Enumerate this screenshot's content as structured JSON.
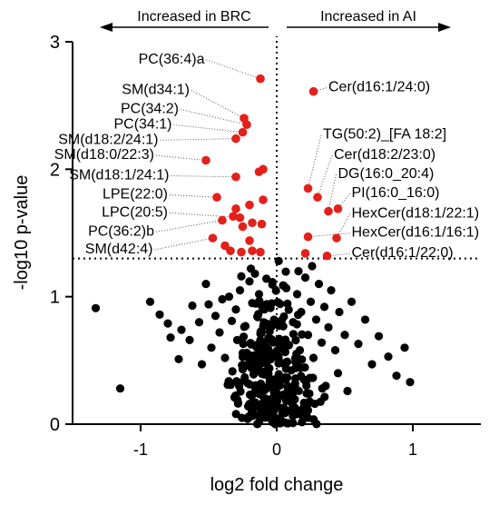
{
  "chart_data": {
    "type": "scatter",
    "title": "",
    "xlabel": "log2 fold change",
    "ylabel": "-log10 p-value",
    "xlim": [
      -1.5,
      1.5
    ],
    "ylim": [
      0,
      3
    ],
    "x_ticks": [
      {
        "v": -1,
        "label": "-1"
      },
      {
        "v": 0,
        "label": "0"
      },
      {
        "v": 1,
        "label": "1"
      }
    ],
    "y_ticks": [
      {
        "v": 0,
        "label": "0"
      },
      {
        "v": 1,
        "label": "1"
      },
      {
        "v": 2,
        "label": "2"
      },
      {
        "v": 3,
        "label": "3"
      }
    ],
    "threshold_y": 1.3,
    "threshold_x": 0,
    "grid": false,
    "header_left": "Increased in BRC",
    "header_right": "Increased in AI",
    "colors": {
      "significant": "#e3201b",
      "nonsignificant": "#000000"
    },
    "significant_points": [
      {
        "x": -0.12,
        "y": 2.71
      },
      {
        "x": -0.24,
        "y": 2.4
      },
      {
        "x": -0.22,
        "y": 2.35
      },
      {
        "x": -0.25,
        "y": 2.29
      },
      {
        "x": -0.3,
        "y": 2.24
      },
      {
        "x": -0.52,
        "y": 2.07
      },
      {
        "x": -0.1,
        "y": 2.0
      },
      {
        "x": -0.13,
        "y": 1.98
      },
      {
        "x": -0.3,
        "y": 1.94
      },
      {
        "x": -0.44,
        "y": 1.78
      },
      {
        "x": -0.1,
        "y": 1.76
      },
      {
        "x": -0.2,
        "y": 1.72
      },
      {
        "x": -0.3,
        "y": 1.69
      },
      {
        "x": -0.32,
        "y": 1.63
      },
      {
        "x": -0.27,
        "y": 1.62
      },
      {
        "x": -0.4,
        "y": 1.6
      },
      {
        "x": -0.18,
        "y": 1.58
      },
      {
        "x": -0.11,
        "y": 1.57
      },
      {
        "x": -0.25,
        "y": 1.55
      },
      {
        "x": -0.47,
        "y": 1.46
      },
      {
        "x": -0.2,
        "y": 1.44
      },
      {
        "x": -0.38,
        "y": 1.4
      },
      {
        "x": -0.34,
        "y": 1.36
      },
      {
        "x": -0.26,
        "y": 1.35
      },
      {
        "x": -0.18,
        "y": 1.36
      },
      {
        "x": -0.12,
        "y": 1.35
      },
      {
        "x": 0.27,
        "y": 2.61
      },
      {
        "x": 0.23,
        "y": 1.85
      },
      {
        "x": 0.3,
        "y": 1.78
      },
      {
        "x": 0.38,
        "y": 1.67
      },
      {
        "x": 0.45,
        "y": 1.69
      },
      {
        "x": 0.44,
        "y": 1.46
      },
      {
        "x": 0.23,
        "y": 1.47
      },
      {
        "x": 0.37,
        "y": 1.32
      },
      {
        "x": 0.21,
        "y": 1.34
      }
    ],
    "labels": [
      {
        "text": "PC(36:4)a",
        "side": "left",
        "x": -0.53,
        "y": 2.83,
        "px": -0.12,
        "py": 2.71
      },
      {
        "text": "SM(d34:1)",
        "side": "left",
        "x": -0.64,
        "y": 2.59,
        "px": -0.24,
        "py": 2.4
      },
      {
        "text": "PC(34:2)",
        "side": "left",
        "x": -0.72,
        "y": 2.44,
        "px": -0.22,
        "py": 2.35
      },
      {
        "text": "PC(34:1)",
        "side": "left",
        "x": -0.77,
        "y": 2.32,
        "px": -0.25,
        "py": 2.29
      },
      {
        "text": "SM(d18:2/24:1)",
        "side": "left",
        "x": -0.87,
        "y": 2.2,
        "px": -0.3,
        "py": 2.24
      },
      {
        "text": "SM(d18:0/22:3)",
        "side": "left",
        "x": -0.9,
        "y": 2.08,
        "px": -0.52,
        "py": 2.07
      },
      {
        "text": "SM(d18:1/24:1)",
        "side": "left",
        "x": -0.79,
        "y": 1.92,
        "px": -0.3,
        "py": 1.94
      },
      {
        "text": "LPE(22:0)",
        "side": "left",
        "x": -0.8,
        "y": 1.77,
        "px": -0.44,
        "py": 1.78
      },
      {
        "text": "LPC(20:5)",
        "side": "left",
        "x": -0.8,
        "y": 1.63,
        "px": -0.27,
        "py": 1.62
      },
      {
        "text": "PC(36:2)b",
        "side": "left",
        "x": -0.9,
        "y": 1.48,
        "px": -0.4,
        "py": 1.6
      },
      {
        "text": "SM(d42:4)",
        "side": "left",
        "x": -0.91,
        "y": 1.34,
        "px": -0.47,
        "py": 1.46
      },
      {
        "text": "Cer(d16:1/24:0)",
        "side": "right",
        "x": 0.38,
        "y": 2.61,
        "px": 0.27,
        "py": 2.61
      },
      {
        "text": "TG(50:2)_[FA 18:2]",
        "side": "right",
        "x": 0.34,
        "y": 2.24,
        "px": 0.23,
        "py": 1.85
      },
      {
        "text": "Cer(d18:2/23:0)",
        "side": "right",
        "x": 0.42,
        "y": 2.08,
        "px": 0.3,
        "py": 1.78
      },
      {
        "text": "DG(16:0_20:4)",
        "side": "right",
        "x": 0.45,
        "y": 1.93,
        "px": 0.38,
        "py": 1.67
      },
      {
        "text": "PI(16:0_16:0)",
        "side": "right",
        "x": 0.55,
        "y": 1.78,
        "px": 0.45,
        "py": 1.69
      },
      {
        "text": "HexCer(d18:1/22:1)",
        "side": "right",
        "x": 0.55,
        "y": 1.62,
        "px": 0.44,
        "py": 1.46
      },
      {
        "text": "HexCer(d16:1/16:1)",
        "side": "right",
        "x": 0.55,
        "y": 1.47,
        "px": 0.23,
        "py": 1.47
      },
      {
        "text": "Cer(d16:1/22:0)",
        "side": "right",
        "x": 0.55,
        "y": 1.31,
        "px": 0.37,
        "py": 1.32
      }
    ],
    "nonsignificant_points": [
      [
        -1.33,
        0.91
      ],
      [
        -1.15,
        0.28
      ],
      [
        -0.93,
        0.96
      ],
      [
        -0.86,
        0.86
      ],
      [
        -0.8,
        0.79
      ],
      [
        -0.78,
        0.68
      ],
      [
        -0.7,
        0.74
      ],
      [
        -0.62,
        0.93
      ],
      [
        -0.52,
        1.1
      ],
      [
        -0.5,
        0.94
      ],
      [
        -0.48,
        0.6
      ],
      [
        -0.45,
        0.85
      ],
      [
        -0.42,
        0.72
      ],
      [
        -0.4,
        0.98
      ],
      [
        -0.38,
        0.52
      ],
      [
        -0.35,
        1.0
      ],
      [
        -0.33,
        0.81
      ],
      [
        -0.3,
        0.9
      ],
      [
        -0.29,
        0.66
      ],
      [
        -0.27,
        1.05
      ],
      [
        -0.25,
        0.43
      ],
      [
        -0.23,
        0.77
      ],
      [
        -0.22,
        0.56
      ],
      [
        -0.2,
        1.12
      ],
      [
        -0.18,
        0.95
      ],
      [
        -0.17,
        0.39
      ],
      [
        -0.15,
        0.62
      ],
      [
        -0.14,
        0.84
      ],
      [
        -0.13,
        1.02
      ],
      [
        -0.12,
        0.71
      ],
      [
        -0.11,
        0.3
      ],
      [
        -0.1,
        0.54
      ],
      [
        -0.09,
        0.9
      ],
      [
        -0.08,
        0.2
      ],
      [
        -0.07,
        0.41
      ],
      [
        -0.06,
        0.66
      ],
      [
        -0.05,
        0.12
      ],
      [
        -0.04,
        0.33
      ],
      [
        -0.03,
        0.08
      ],
      [
        -0.02,
        0.25
      ],
      [
        -0.01,
        0.05
      ],
      [
        0.0,
        0.15
      ],
      [
        0.02,
        0.22
      ],
      [
        0.03,
        0.36
      ],
      [
        0.05,
        0.1
      ],
      [
        0.06,
        0.48
      ],
      [
        0.08,
        0.3
      ],
      [
        0.09,
        0.62
      ],
      [
        0.11,
        0.18
      ],
      [
        0.12,
        0.8
      ],
      [
        0.14,
        0.44
      ],
      [
        0.15,
        1.02
      ],
      [
        0.17,
        0.58
      ],
      [
        0.18,
        0.88
      ],
      [
        0.2,
        0.35
      ],
      [
        0.21,
        1.15
      ],
      [
        0.23,
        0.7
      ],
      [
        0.25,
        0.96
      ],
      [
        0.27,
        0.52
      ],
      [
        0.29,
        0.82
      ],
      [
        0.31,
        1.1
      ],
      [
        0.33,
        0.64
      ],
      [
        0.35,
        0.92
      ],
      [
        0.38,
        0.76
      ],
      [
        0.4,
        1.05
      ],
      [
        0.43,
        0.58
      ],
      [
        0.46,
        0.88
      ],
      [
        0.5,
        0.7
      ],
      [
        0.55,
        0.96
      ],
      [
        0.6,
        0.63
      ],
      [
        0.65,
        0.82
      ],
      [
        0.7,
        0.47
      ],
      [
        0.75,
        0.69
      ],
      [
        0.82,
        0.53
      ],
      [
        0.88,
        0.38
      ],
      [
        0.94,
        0.6
      ],
      [
        0.98,
        0.33
      ],
      [
        -0.57,
        0.8
      ],
      [
        -0.64,
        0.66
      ],
      [
        -0.72,
        0.51
      ],
      [
        -0.55,
        0.47
      ],
      [
        -0.36,
        0.31
      ],
      [
        -0.31,
        0.21
      ],
      [
        -0.21,
        0.14
      ],
      [
        0.19,
        0.12
      ],
      [
        0.24,
        0.24
      ],
      [
        0.28,
        0.16
      ],
      [
        0.36,
        0.3
      ],
      [
        0.45,
        0.4
      ],
      [
        0.52,
        0.26
      ],
      [
        -0.19,
        1.22
      ],
      [
        -0.16,
        1.18
      ],
      [
        -0.26,
        1.16
      ],
      [
        0.16,
        1.2
      ],
      [
        0.26,
        1.24
      ]
    ]
  }
}
